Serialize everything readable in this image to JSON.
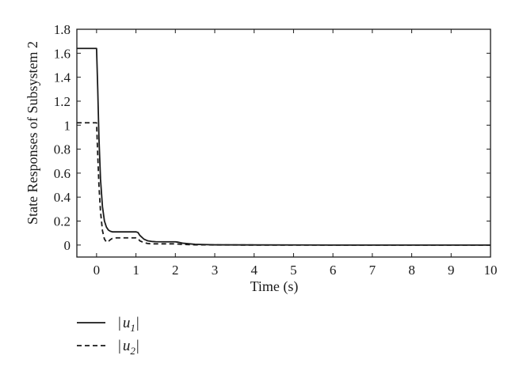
{
  "chart_data": {
    "type": "line",
    "title": "",
    "xlabel": "Time (s)",
    "ylabel": "State Responses of Subsystem 2",
    "xlim": [
      -0.5,
      10
    ],
    "ylim": [
      -0.1,
      1.8
    ],
    "xticks": [
      "0",
      "1",
      "2",
      "3",
      "4",
      "5",
      "6",
      "7",
      "8",
      "9",
      "10"
    ],
    "xtick_values": [
      0,
      1,
      2,
      3,
      4,
      5,
      6,
      7,
      8,
      9,
      10
    ],
    "yticks": [
      "0",
      "0.2",
      "0.4",
      "0.6",
      "0.8",
      "1",
      "1.2",
      "1.4",
      "1.6",
      "1.8"
    ],
    "ytick_values": [
      0,
      0.2,
      0.4,
      0.6,
      0.8,
      1.0,
      1.2,
      1.4,
      1.6,
      1.8
    ],
    "grid": false,
    "legend_placement": "below-left",
    "series": [
      {
        "name": "|u1|",
        "label_main": "u",
        "label_sub": "1",
        "style": "solid",
        "color": "#1a1a1a",
        "x": [
          -0.5,
          -0.02,
          0.0,
          0.03,
          0.06,
          0.1,
          0.15,
          0.2,
          0.25,
          0.3,
          0.35,
          0.4,
          0.5,
          0.6,
          0.7,
          0.8,
          0.9,
          1.0,
          1.05,
          1.1,
          1.2,
          1.3,
          1.4,
          1.5,
          1.7,
          2.0,
          2.05,
          2.2,
          2.5,
          3.0,
          4.0,
          6.0,
          8.0,
          10.0
        ],
        "y": [
          1.64,
          1.64,
          1.64,
          1.3,
          0.9,
          0.55,
          0.32,
          0.2,
          0.15,
          0.125,
          0.115,
          0.11,
          0.11,
          0.11,
          0.11,
          0.11,
          0.11,
          0.11,
          0.105,
          0.08,
          0.05,
          0.035,
          0.03,
          0.028,
          0.027,
          0.027,
          0.025,
          0.015,
          0.006,
          0.002,
          0.001,
          0.0,
          0.0,
          0.0
        ]
      },
      {
        "name": "|u2|",
        "label_main": "u",
        "label_sub": "2",
        "style": "dashed",
        "color": "#1a1a1a",
        "x": [
          -0.5,
          -0.02,
          0.0,
          0.03,
          0.06,
          0.1,
          0.15,
          0.2,
          0.25,
          0.3,
          0.35,
          0.4,
          0.5,
          0.6,
          0.7,
          0.8,
          0.9,
          1.0,
          1.05,
          1.1,
          1.2,
          1.3,
          1.4,
          1.5,
          1.7,
          2.0,
          2.05,
          2.2,
          2.5,
          3.0,
          4.0,
          6.0,
          8.0,
          10.0
        ],
        "y": [
          1.02,
          1.02,
          1.02,
          0.75,
          0.5,
          0.28,
          0.12,
          0.05,
          0.025,
          0.03,
          0.045,
          0.055,
          0.06,
          0.06,
          0.06,
          0.06,
          0.06,
          0.06,
          0.055,
          0.035,
          0.02,
          0.013,
          0.01,
          0.01,
          0.01,
          0.01,
          0.009,
          0.005,
          0.002,
          0.001,
          0.0,
          0.0,
          0.0,
          0.0
        ]
      }
    ]
  }
}
